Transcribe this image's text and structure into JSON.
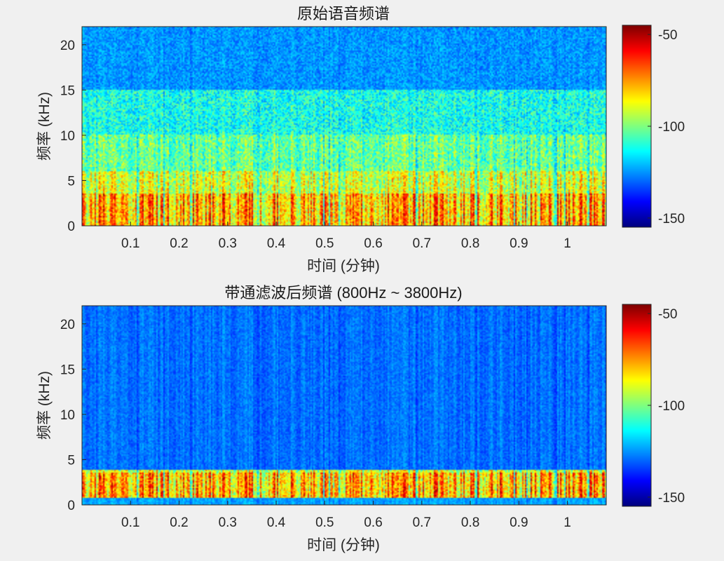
{
  "chart_data": [
    {
      "type": "heatmap",
      "title": "原始语音频谱",
      "xlabel": "时间 (分钟)",
      "ylabel": "频率 (kHz)",
      "xlim": [
        0,
        1.08
      ],
      "ylim": [
        0,
        22
      ],
      "x_ticks": [
        {
          "value": 0.1,
          "label": "0.1"
        },
        {
          "value": 0.2,
          "label": "0.2"
        },
        {
          "value": 0.3,
          "label": "0.3"
        },
        {
          "value": 0.4,
          "label": "0.4"
        },
        {
          "value": 0.5,
          "label": "0.5"
        },
        {
          "value": 0.6,
          "label": "0.6"
        },
        {
          "value": 0.7,
          "label": "0.7"
        },
        {
          "value": 0.8,
          "label": "0.8"
        },
        {
          "value": 0.9,
          "label": "0.9"
        },
        {
          "value": 1.0,
          "label": "1"
        }
      ],
      "y_ticks": [
        {
          "value": 0,
          "label": "0"
        },
        {
          "value": 5,
          "label": "5"
        },
        {
          "value": 10,
          "label": "10"
        },
        {
          "value": 15,
          "label": "15"
        },
        {
          "value": 20,
          "label": "20"
        }
      ],
      "colorbar": {
        "colormap": "jet",
        "range": [
          -155,
          -45
        ],
        "ticks": [
          {
            "value": -50,
            "label": "-50"
          },
          {
            "value": -100,
            "label": "-100"
          },
          {
            "value": -150,
            "label": "-150"
          }
        ]
      },
      "energy_band_khz": [
        0,
        15
      ]
    },
    {
      "type": "heatmap",
      "title": "带通滤波后频谱 (800Hz ~ 3800Hz)",
      "xlabel": "时间 (分钟)",
      "ylabel": "频率 (kHz)",
      "xlim": [
        0,
        1.08
      ],
      "ylim": [
        0,
        22
      ],
      "x_ticks": [
        {
          "value": 0.1,
          "label": "0.1"
        },
        {
          "value": 0.2,
          "label": "0.2"
        },
        {
          "value": 0.3,
          "label": "0.3"
        },
        {
          "value": 0.4,
          "label": "0.4"
        },
        {
          "value": 0.5,
          "label": "0.5"
        },
        {
          "value": 0.6,
          "label": "0.6"
        },
        {
          "value": 0.7,
          "label": "0.7"
        },
        {
          "value": 0.8,
          "label": "0.8"
        },
        {
          "value": 0.9,
          "label": "0.9"
        },
        {
          "value": 1.0,
          "label": "1"
        }
      ],
      "y_ticks": [
        {
          "value": 0,
          "label": "0"
        },
        {
          "value": 5,
          "label": "5"
        },
        {
          "value": 10,
          "label": "10"
        },
        {
          "value": 15,
          "label": "15"
        },
        {
          "value": 20,
          "label": "20"
        }
      ],
      "colorbar": {
        "colormap": "jet",
        "range": [
          -155,
          -45
        ],
        "ticks": [
          {
            "value": -50,
            "label": "-50"
          },
          {
            "value": -100,
            "label": "-100"
          },
          {
            "value": -150,
            "label": "-150"
          }
        ]
      },
      "energy_band_khz": [
        0.8,
        3.8
      ]
    }
  ]
}
